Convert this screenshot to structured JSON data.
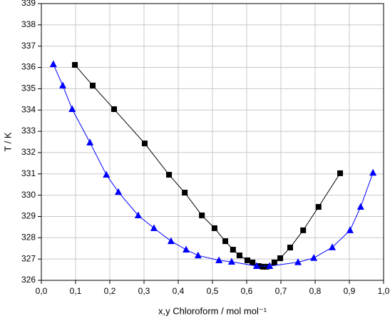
{
  "chart_data": {
    "type": "line",
    "x_label": "x,y Chloroform / mol mol⁻¹",
    "y_label": "T / K",
    "xlim": [
      0,
      1
    ],
    "ylim": [
      326,
      339
    ],
    "xticks": [
      {
        "value": 0,
        "label": "0,0"
      },
      {
        "value": 0.1,
        "label": "0,1"
      },
      {
        "value": 0.2,
        "label": "0,2"
      },
      {
        "value": 0.3,
        "label": "0,3"
      },
      {
        "value": 0.4,
        "label": "0,4"
      },
      {
        "value": 0.5,
        "label": "0,5"
      },
      {
        "value": 0.6,
        "label": "0,6"
      },
      {
        "value": 0.7,
        "label": "0,7"
      },
      {
        "value": 0.8,
        "label": "0,8"
      },
      {
        "value": 0.9,
        "label": "0,9"
      },
      {
        "value": 1,
        "label": "1,0"
      }
    ],
    "yticks": [
      326,
      327,
      328,
      329,
      330,
      331,
      332,
      333,
      334,
      335,
      336,
      337,
      338,
      339
    ],
    "grid": true,
    "series": [
      {
        "color": "#000000",
        "marker": "square",
        "x": [
          0.098,
          0.15,
          0.2125,
          0.302,
          0.373,
          0.419,
          0.469,
          0.506,
          0.5375,
          0.56,
          0.579,
          0.602,
          0.617,
          0.635,
          0.648,
          0.658,
          0.681,
          0.698,
          0.727,
          0.765,
          0.81,
          0.873
        ],
        "values": [
          336.12,
          335.15,
          334.04,
          332.43,
          330.96,
          330.12,
          329.05,
          328.45,
          327.84,
          327.44,
          327.17,
          326.94,
          326.84,
          326.67,
          326.64,
          326.64,
          326.84,
          327.04,
          327.54,
          328.35,
          329.45,
          331.03
        ]
      },
      {
        "color": "#0000ff",
        "marker": "triangle",
        "x": [
          0.035,
          0.0625,
          0.09,
          0.142,
          0.19,
          0.225,
          0.283,
          0.329,
          0.379,
          0.423,
          0.458,
          0.519,
          0.556,
          0.629,
          0.667,
          0.75,
          0.796,
          0.85,
          0.902,
          0.933,
          0.969
        ],
        "values": [
          336.15,
          335.15,
          334.04,
          332.47,
          330.96,
          330.15,
          329.05,
          328.45,
          327.84,
          327.44,
          327.17,
          326.94,
          326.87,
          326.67,
          326.67,
          326.85,
          327.05,
          327.55,
          328.35,
          329.45,
          331.05
        ]
      }
    ]
  }
}
